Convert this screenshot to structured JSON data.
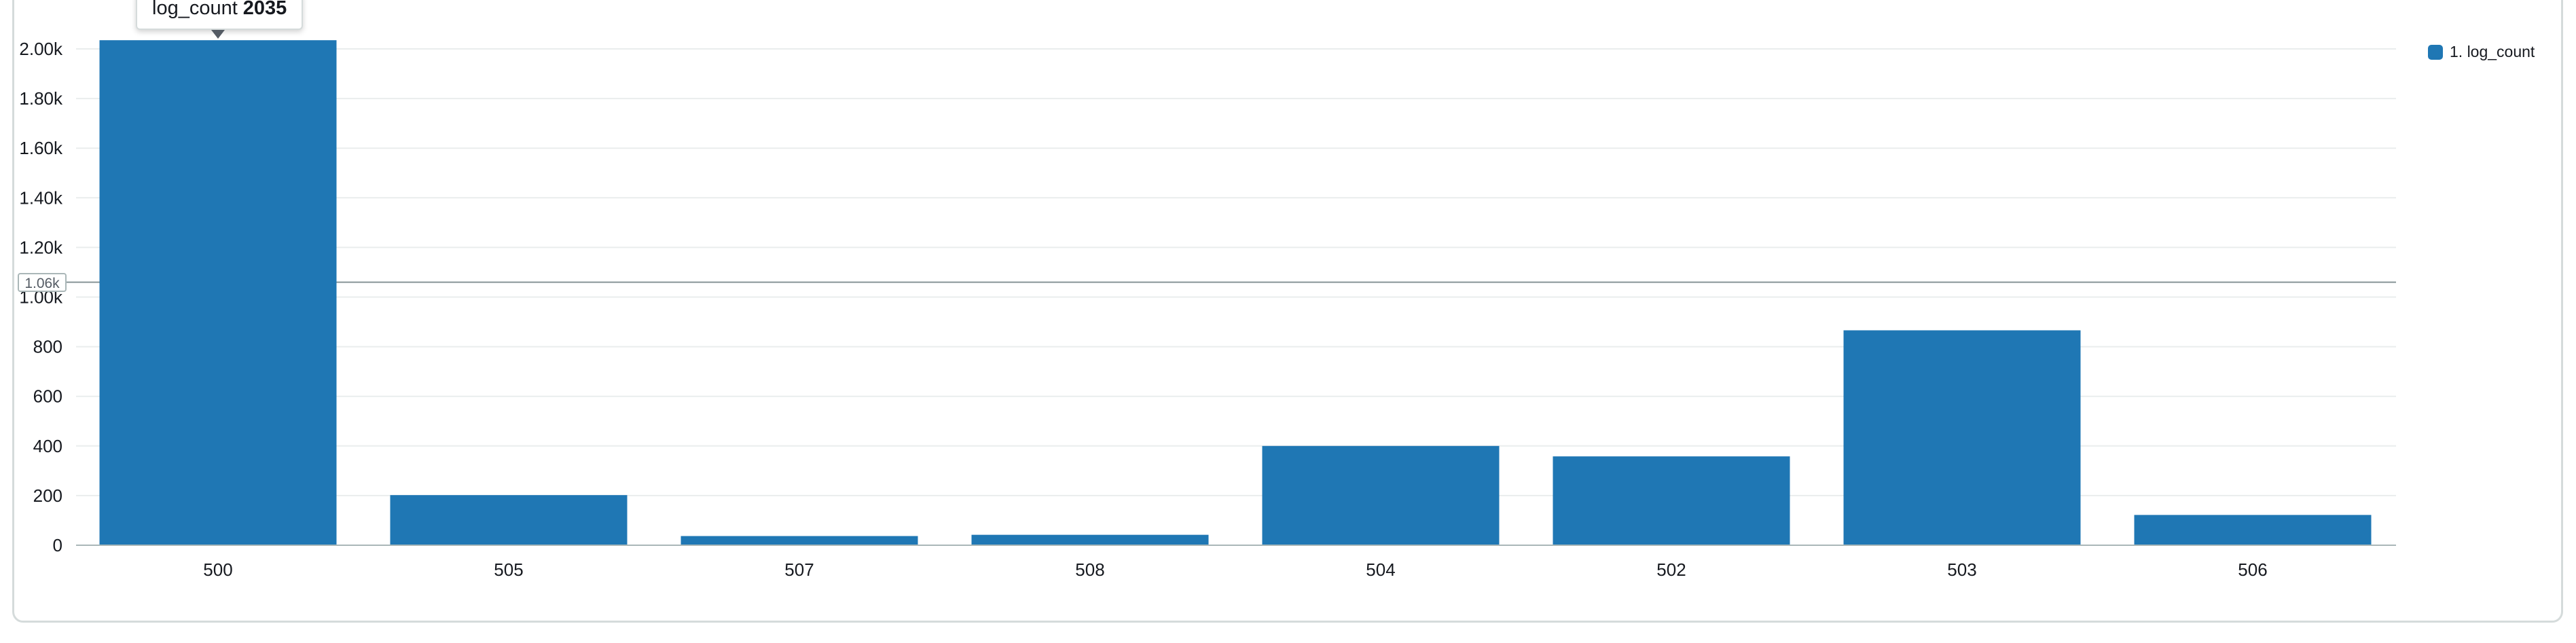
{
  "chart_data": {
    "type": "bar",
    "categories": [
      "500",
      "505",
      "507",
      "508",
      "504",
      "502",
      "503",
      "506"
    ],
    "series": [
      {
        "name": "1. log_count",
        "values": [
          2035,
          202,
          37,
          42,
          400,
          358,
          866,
          122
        ]
      }
    ],
    "ylim": [
      0,
      2000
    ],
    "yticks": [
      "0",
      "200",
      "400",
      "600",
      "800",
      "1.00k",
      "1.20k",
      "1.40k",
      "1.60k",
      "1.80k",
      "2.00k"
    ],
    "ytick_values": [
      0,
      200,
      400,
      600,
      800,
      1000,
      1200,
      1400,
      1600,
      1800,
      2000
    ],
    "grid": true,
    "legend_position": "top-right",
    "color": "#1f77b4",
    "crosshair_value": 1060,
    "crosshair_label": "1.06k"
  },
  "tooltip": {
    "label": "log_count",
    "value": "2035"
  },
  "legend": {
    "label": "1. log_count"
  }
}
